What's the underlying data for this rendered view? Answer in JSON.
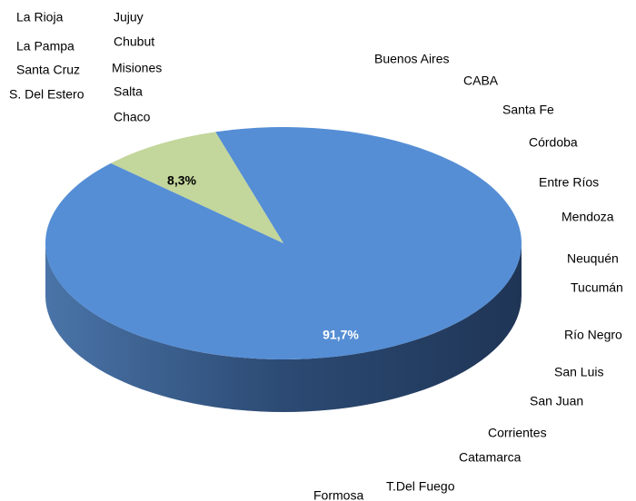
{
  "chart_data": {
    "type": "pie",
    "values": [
      91.7,
      8.3
    ],
    "value_labels": [
      "91,7%",
      "8,3%"
    ],
    "colors": [
      "#558ed5",
      "#c3d69b"
    ],
    "annotations": [
      "La Rioja",
      "La Pampa",
      "Santa Cruz",
      "S. Del Estero",
      "Jujuy",
      "Chubut",
      "Misiones",
      "Salta",
      "Chaco",
      "Buenos Aires",
      "CABA",
      "Santa Fe",
      "Córdoba",
      "Entre Ríos",
      "Mendoza",
      "Neuquén",
      "Tucumán",
      "Río Negro",
      "San Luis",
      "San Juan",
      "Corrientes",
      "Catamarca",
      "T.Del Fuego",
      "Formosa"
    ]
  }
}
